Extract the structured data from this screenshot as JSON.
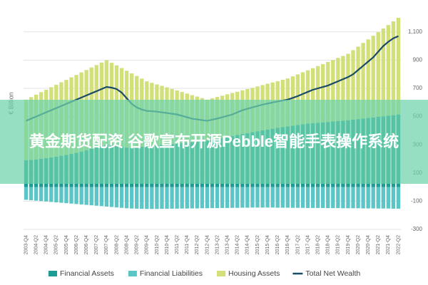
{
  "chart_data": {
    "type": "bar",
    "stacked": true,
    "y_label": "€ Billion",
    "categories": [
      "2003-Q4",
      null,
      "2004-Q2",
      null,
      "2004-Q4",
      null,
      "2005-Q2",
      null,
      "2005-Q4",
      null,
      "2006-Q2",
      null,
      "2006-Q4",
      null,
      "2007-Q2",
      null,
      "2007-Q4",
      null,
      "2008-Q2",
      null,
      "2008-Q4",
      null,
      "2009-Q2",
      null,
      "2009-Q4",
      null,
      "2010-Q2",
      null,
      "2010-Q4",
      null,
      "2011-Q2",
      null,
      "2011-Q4",
      null,
      "2012-Q2",
      null,
      "2012-Q4",
      null,
      "2013-Q2",
      null,
      "2013-Q4",
      null,
      "2014-Q2",
      null,
      "2014-Q4",
      null,
      "2015-Q2",
      null,
      "2015-Q4",
      null,
      "2016-Q2",
      null,
      "2016-Q4",
      null,
      "2017-Q2",
      null,
      "2017-Q4",
      null,
      "2018-Q2",
      null,
      "2018-Q4",
      null,
      "2019-Q2",
      null,
      "2019-Q4",
      null,
      "2020-Q2",
      null,
      "2020-Q4",
      null,
      "2021-Q2",
      null,
      "2021-Q4",
      null,
      "2022-Q2"
    ],
    "series": [
      {
        "name": "Financial Assets",
        "type": "bar",
        "color": "#1e9c94",
        "values": [
          190,
          193,
          196,
          200,
          205,
          210,
          216,
          222,
          228,
          235,
          243,
          252,
          262,
          272,
          282,
          292,
          300,
          302,
          296,
          288,
          280,
          278,
          282,
          286,
          290,
          294,
          297,
          300,
          303,
          306,
          309,
          312,
          315,
          318,
          322,
          326,
          330,
          336,
          342,
          348,
          355,
          362,
          369,
          376,
          383,
          390,
          396,
          402,
          408,
          414,
          420,
          425,
          430,
          435,
          440,
          445,
          450,
          453,
          456,
          459,
          462,
          465,
          468,
          471,
          474,
          478,
          482,
          486,
          490,
          494,
          498,
          502,
          506,
          510,
          515
        ]
      },
      {
        "name": "Financial Liabilities",
        "type": "bar",
        "color": "#5cc6c6",
        "values": [
          -90,
          -93,
          -96,
          -99,
          -102,
          -105,
          -108,
          -111,
          -114,
          -117,
          -120,
          -123,
          -126,
          -129,
          -132,
          -135,
          -138,
          -141,
          -144,
          -147,
          -150,
          -152,
          -153,
          -154,
          -155,
          -155,
          -155,
          -154,
          -154,
          -153,
          -153,
          -152,
          -152,
          -151,
          -151,
          -150,
          -150,
          -149,
          -149,
          -148,
          -148,
          -147,
          -147,
          -146,
          -146,
          -145,
          -145,
          -145,
          -145,
          -145,
          -146,
          -146,
          -146,
          -147,
          -147,
          -147,
          -148,
          -148,
          -148,
          -148,
          -149,
          -149,
          -149,
          -150,
          -150,
          -150,
          -150,
          -151,
          -151,
          -151,
          -152,
          -152,
          -152,
          -153,
          -153
        ]
      },
      {
        "name": "Housing Assets",
        "type": "bar",
        "color": "#d3e07a",
        "values": [
          430,
          445,
          459,
          473,
          485,
          498,
          509,
          521,
          532,
          543,
          552,
          561,
          568,
          576,
          583,
          591,
          600,
          579,
          567,
          556,
          545,
          528,
          506,
          483,
          460,
          445,
          431,
          418,
          404,
          390,
          376,
          362,
          348,
          334,
          320,
          305,
          290,
          293,
          297,
          300,
          303,
          305,
          307,
          310,
          312,
          314,
          318,
          321,
          325,
          328,
          331,
          336,
          340,
          350,
          359,
          369,
          378,
          390,
          402,
          413,
          425,
          436,
          448,
          459,
          471,
          493,
          514,
          536,
          557,
          579,
          600,
          622,
          643,
          665,
          685
        ]
      },
      {
        "name": "Total Net Wealth",
        "type": "line",
        "color": "#1c4b68",
        "values": [
          470,
          485,
          500,
          515,
          530,
          545,
          560,
          575,
          590,
          605,
          620,
          635,
          650,
          665,
          680,
          695,
          710,
          705,
          695,
          670,
          630,
          590,
          565,
          550,
          540,
          538,
          535,
          530,
          525,
          520,
          515,
          505,
          495,
          485,
          480,
          475,
          470,
          478,
          486,
          495,
          505,
          515,
          530,
          545,
          555,
          565,
          575,
          585,
          592,
          600,
          607,
          614,
          620,
          632,
          645,
          660,
          675,
          690,
          700,
          710,
          720,
          735,
          750,
          765,
          780,
          800,
          830,
          860,
          890,
          920,
          960,
          1000,
          1030,
          1055,
          1070
        ]
      }
    ],
    "ylim": [
      -300,
      1200
    ],
    "yticks": [
      -300,
      -100,
      100,
      300,
      500,
      700,
      900,
      {
        "value": 1100,
        "label": "1,100"
      }
    ],
    "grid": true
  },
  "overlay_text": "黄金期货配资 谷歌宣布开源Pebble智能手表操作系统"
}
